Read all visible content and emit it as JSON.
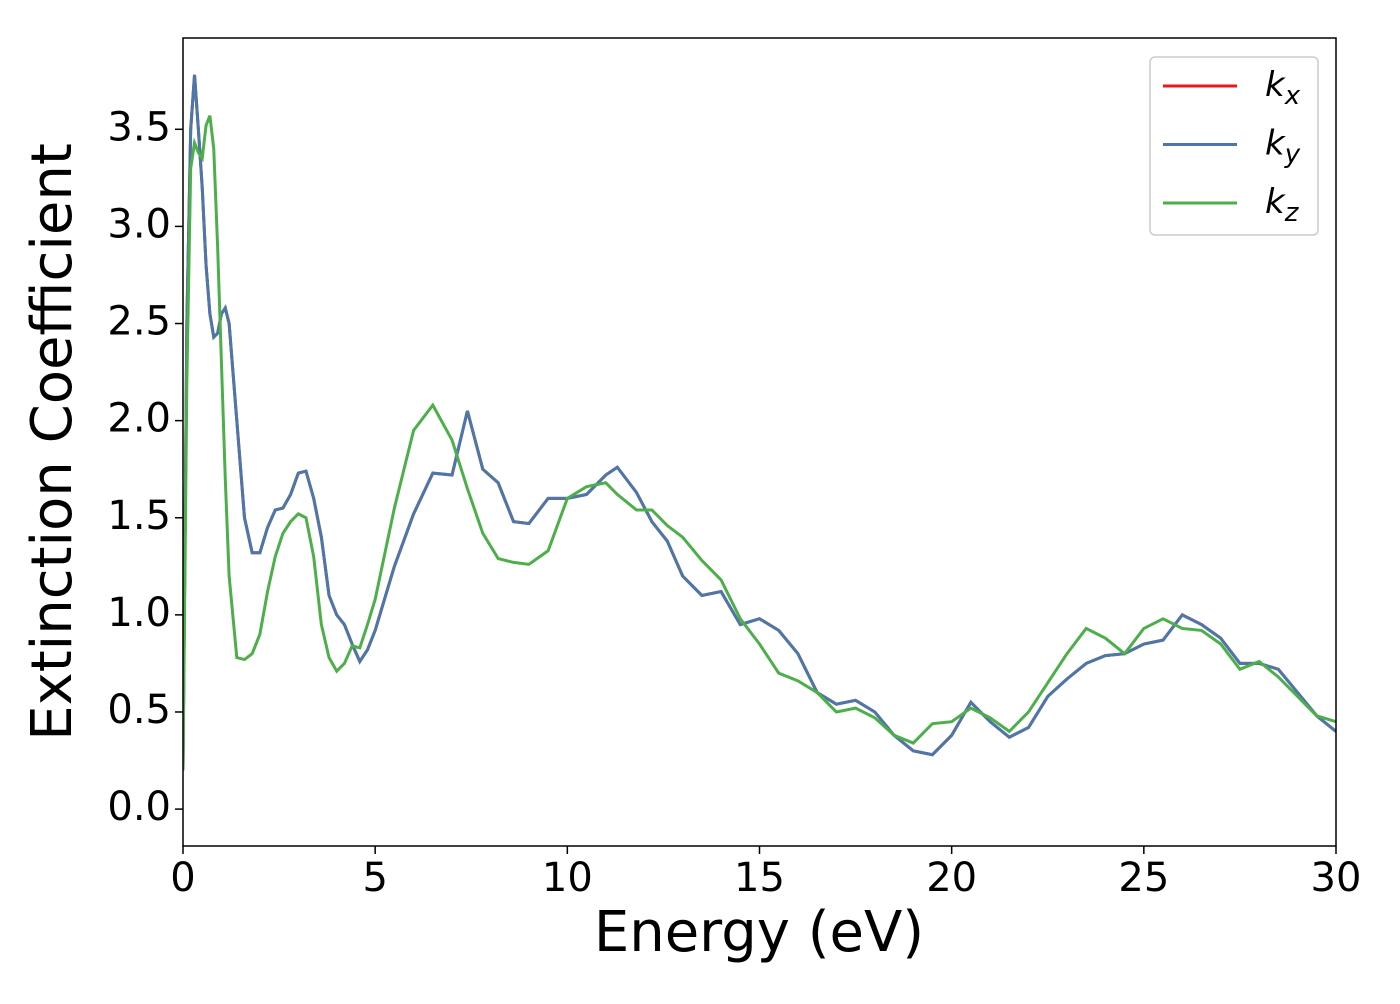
{
  "chart_data": {
    "type": "line",
    "x_label": "Energy (eV)",
    "y_label": "Extinction Coefficient",
    "x": [
      0,
      0.1,
      0.2,
      0.3,
      0.4,
      0.5,
      0.6,
      0.7,
      0.8,
      0.9,
      1.0,
      1.1,
      1.2,
      1.4,
      1.6,
      1.8,
      2.0,
      2.2,
      2.4,
      2.6,
      2.8,
      3.0,
      3.2,
      3.4,
      3.6,
      3.8,
      4.0,
      4.2,
      4.4,
      4.6,
      4.8,
      5.0,
      5.5,
      6.0,
      6.5,
      7.0,
      7.4,
      7.8,
      8.2,
      8.6,
      9.0,
      9.5,
      10,
      10.5,
      11,
      11.3,
      11.8,
      12.2,
      12.6,
      13,
      13.5,
      14,
      14.5,
      15,
      15.5,
      16,
      16.5,
      17,
      17.5,
      18,
      18.5,
      19,
      19.5,
      20,
      20.5,
      21,
      21.5,
      22,
      22.5,
      23,
      23.5,
      24,
      24.5,
      25,
      25.5,
      26,
      26.5,
      27,
      27.5,
      28,
      28.5,
      29,
      29.5,
      30
    ],
    "series": [
      {
        "name": "kx",
        "color": "#e41a1c",
        "values": [
          0.2,
          2.5,
          3.5,
          3.78,
          3.5,
          3.2,
          2.8,
          2.55,
          2.43,
          2.45,
          2.55,
          2.58,
          2.5,
          2.0,
          1.5,
          1.32,
          1.32,
          1.45,
          1.54,
          1.55,
          1.62,
          1.73,
          1.74,
          1.6,
          1.4,
          1.1,
          1.0,
          0.95,
          0.85,
          0.76,
          0.82,
          0.92,
          1.25,
          1.52,
          1.73,
          1.72,
          2.05,
          1.75,
          1.68,
          1.48,
          1.47,
          1.6,
          1.6,
          1.62,
          1.72,
          1.76,
          1.63,
          1.48,
          1.38,
          1.2,
          1.1,
          1.12,
          0.95,
          0.98,
          0.92,
          0.8,
          0.6,
          0.54,
          0.56,
          0.5,
          0.38,
          0.3,
          0.28,
          0.38,
          0.55,
          0.45,
          0.37,
          0.42,
          0.58,
          0.67,
          0.75,
          0.79,
          0.8,
          0.85,
          0.87,
          1.0,
          0.95,
          0.88,
          0.75,
          0.75,
          0.72,
          0.6,
          0.48,
          0.4
        ]
      },
      {
        "name": "ky",
        "color": "#4a78ab",
        "values": [
          0.2,
          2.5,
          3.5,
          3.78,
          3.5,
          3.2,
          2.8,
          2.55,
          2.43,
          2.45,
          2.55,
          2.58,
          2.5,
          2.0,
          1.5,
          1.32,
          1.32,
          1.45,
          1.54,
          1.55,
          1.62,
          1.73,
          1.74,
          1.6,
          1.4,
          1.1,
          1.0,
          0.95,
          0.85,
          0.76,
          0.82,
          0.92,
          1.25,
          1.52,
          1.73,
          1.72,
          2.05,
          1.75,
          1.68,
          1.48,
          1.47,
          1.6,
          1.6,
          1.62,
          1.72,
          1.76,
          1.63,
          1.48,
          1.38,
          1.2,
          1.1,
          1.12,
          0.95,
          0.98,
          0.92,
          0.8,
          0.6,
          0.54,
          0.56,
          0.5,
          0.38,
          0.3,
          0.28,
          0.38,
          0.55,
          0.45,
          0.37,
          0.42,
          0.58,
          0.67,
          0.75,
          0.79,
          0.8,
          0.85,
          0.87,
          1.0,
          0.95,
          0.88,
          0.75,
          0.75,
          0.72,
          0.6,
          0.48,
          0.4
        ]
      },
      {
        "name": "kz",
        "color": "#4daf4a",
        "values": [
          0.2,
          2.2,
          3.3,
          3.43,
          3.38,
          3.35,
          3.52,
          3.57,
          3.4,
          2.9,
          2.3,
          1.7,
          1.2,
          0.78,
          0.77,
          0.8,
          0.9,
          1.12,
          1.3,
          1.42,
          1.48,
          1.52,
          1.5,
          1.3,
          0.95,
          0.78,
          0.71,
          0.75,
          0.84,
          0.83,
          0.95,
          1.08,
          1.55,
          1.95,
          2.08,
          1.9,
          1.65,
          1.42,
          1.29,
          1.27,
          1.26,
          1.33,
          1.6,
          1.66,
          1.68,
          1.62,
          1.54,
          1.54,
          1.46,
          1.4,
          1.28,
          1.18,
          0.98,
          0.85,
          0.7,
          0.66,
          0.6,
          0.5,
          0.52,
          0.47,
          0.38,
          0.34,
          0.44,
          0.45,
          0.52,
          0.47,
          0.4,
          0.5,
          0.65,
          0.8,
          0.93,
          0.88,
          0.8,
          0.93,
          0.98,
          0.93,
          0.92,
          0.85,
          0.72,
          0.76,
          0.68,
          0.58,
          0.48,
          0.45
        ]
      }
    ],
    "xlim": [
      0,
      30
    ],
    "xticks": [
      0,
      5,
      10,
      15,
      20,
      25,
      30
    ],
    "ylim": [
      -0.19,
      3.97
    ],
    "yticks": [
      {
        "value": 0,
        "label": "0.0"
      },
      0.5,
      {
        "value": 1,
        "label": "1.0"
      },
      1.5,
      {
        "value": 2,
        "label": "2.0"
      },
      2.5,
      {
        "value": 3,
        "label": "3.0"
      },
      3.5
    ],
    "legend": "upper right",
    "grid": false
  }
}
